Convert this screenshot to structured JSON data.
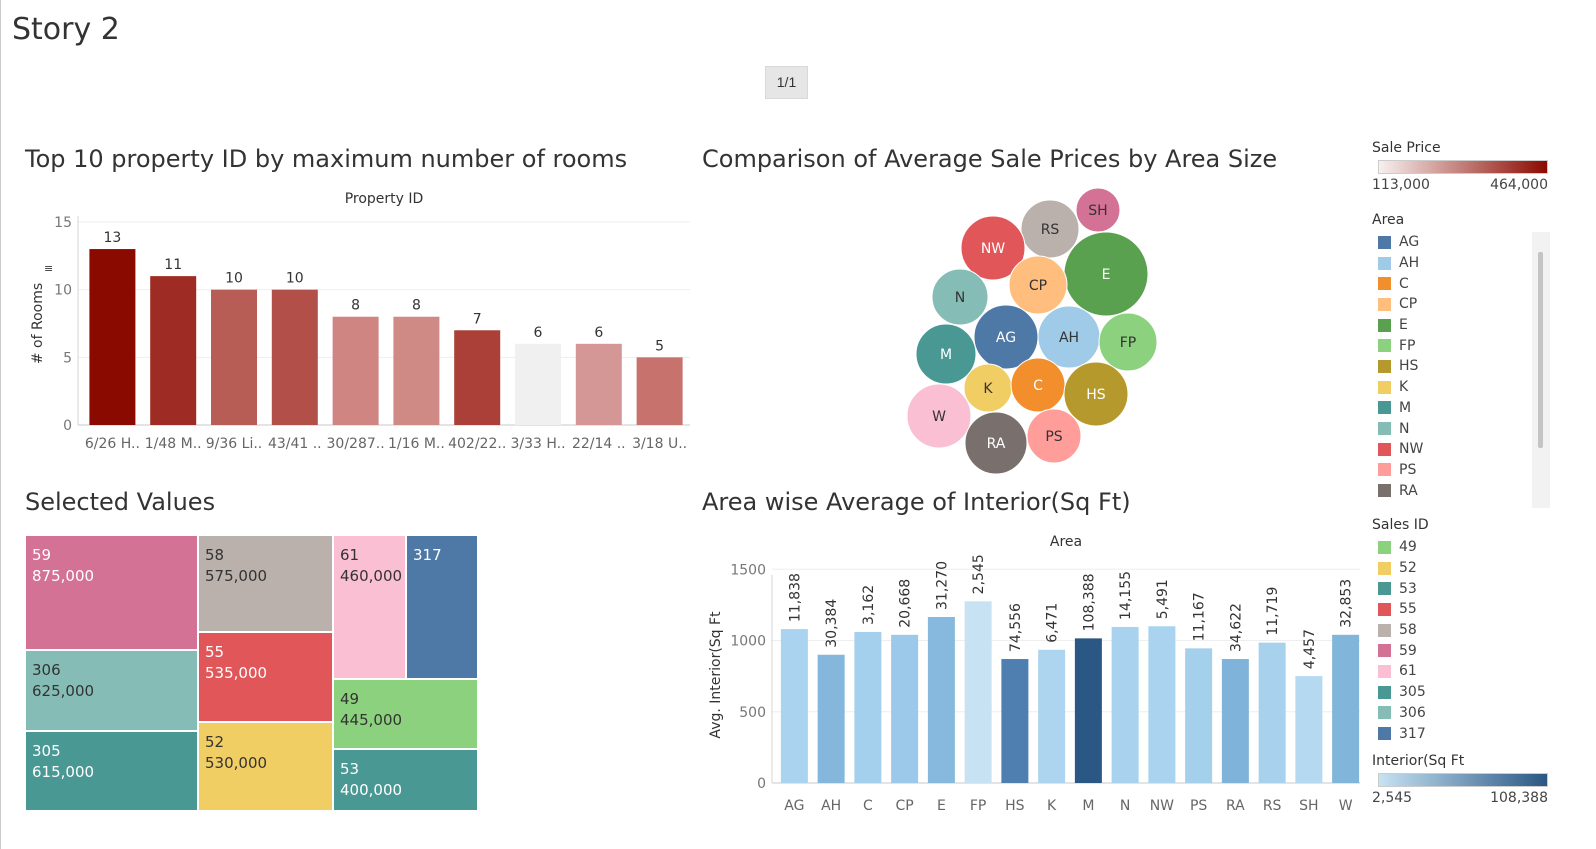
{
  "story_title": "Story 2",
  "page_indicator": "1/1",
  "chart1": {
    "title": "Top 10 property ID by maximum number of rooms",
    "axis_top_title": "Property ID",
    "ylabel": "# of Rooms",
    "ylabel_icon": "sort-icon"
  },
  "chart2": {
    "title": "Comparison of Average Sale Prices by Area Size"
  },
  "chart3": {
    "title": "Selected Values"
  },
  "chart4": {
    "title": "Area wise Average of Interior(Sq Ft)",
    "axis_top_title": "Area",
    "ylabel": "Avg. Interior(Sq Ft"
  },
  "legend": {
    "sale_price": {
      "title": "Sale Price",
      "min": "113,000",
      "max": "464,000",
      "color_min": "#f7f0ef",
      "color_max": "#8b0a00"
    },
    "area": {
      "title": "Area",
      "items": [
        {
          "label": "AG",
          "color": "#4e79a7"
        },
        {
          "label": "AH",
          "color": "#a0cbe8"
        },
        {
          "label": "C",
          "color": "#f28e2b"
        },
        {
          "label": "CP",
          "color": "#ffbe7d"
        },
        {
          "label": "E",
          "color": "#59a14f"
        },
        {
          "label": "FP",
          "color": "#8cd17d"
        },
        {
          "label": "HS",
          "color": "#b6992d"
        },
        {
          "label": "K",
          "color": "#f1ce63"
        },
        {
          "label": "M",
          "color": "#499894"
        },
        {
          "label": "N",
          "color": "#86bcb6"
        },
        {
          "label": "NW",
          "color": "#e15759"
        },
        {
          "label": "PS",
          "color": "#ff9d9a"
        },
        {
          "label": "RA",
          "color": "#79706e"
        }
      ]
    },
    "sales_id": {
      "title": "Sales ID",
      "items": [
        {
          "label": "49",
          "color": "#8cd17d"
        },
        {
          "label": "52",
          "color": "#f1ce63"
        },
        {
          "label": "53",
          "color": "#499894"
        },
        {
          "label": "55",
          "color": "#e15759"
        },
        {
          "label": "58",
          "color": "#bab0ac"
        },
        {
          "label": "59",
          "color": "#d37295"
        },
        {
          "label": "61",
          "color": "#fabfd2"
        },
        {
          "label": "305",
          "color": "#499894"
        },
        {
          "label": "306",
          "color": "#86bcb6"
        },
        {
          "label": "317",
          "color": "#4e79a7"
        }
      ]
    },
    "interior": {
      "title": "Interior(Sq Ft",
      "min": "2,545",
      "max": "108,388",
      "color_min": "#c6e2f3",
      "color_max": "#2a5783"
    }
  },
  "chart_data": [
    {
      "type": "bar",
      "title": "Top 10 property ID by maximum number of rooms",
      "xlabel": "Property ID",
      "ylabel": "# of Rooms",
      "categories": [
        "6/26 H..",
        "1/48 M..",
        "9/36 Li..",
        "43/41 ..",
        "30/287..",
        "1/16 M..",
        "402/22..",
        "3/33 H..",
        "22/14 ..",
        "3/18 U.."
      ],
      "values": [
        13,
        11,
        10,
        10,
        8,
        8,
        7,
        6,
        6,
        5
      ],
      "colors": [
        "#8b0a00",
        "#9e2c24",
        "#b75d56",
        "#b24f49",
        "#cf8581",
        "#d08a86",
        "#aa4037",
        "#f0f0f0",
        "#d49795",
        "#c7726c"
      ],
      "yticks": [
        0,
        5,
        10,
        15
      ],
      "ylim": [
        0,
        15
      ]
    },
    {
      "type": "bubble",
      "title": "Comparison of Average Sale Prices by Area Size",
      "items": [
        {
          "label": "SH",
          "color": "#d37295",
          "size": 22
        },
        {
          "label": "RS",
          "color": "#bab0ac",
          "size": 29
        },
        {
          "label": "NW",
          "color": "#e15759",
          "size": 32
        },
        {
          "label": "E",
          "color": "#59a14f",
          "size": 42
        },
        {
          "label": "CP",
          "color": "#ffbe7d",
          "size": 29
        },
        {
          "label": "N",
          "color": "#86bcb6",
          "size": 28
        },
        {
          "label": "AG",
          "color": "#4e79a7",
          "size": 32
        },
        {
          "label": "AH",
          "color": "#a0cbe8",
          "size": 31
        },
        {
          "label": "FP",
          "color": "#8cd17d",
          "size": 29
        },
        {
          "label": "M",
          "color": "#499894",
          "size": 30
        },
        {
          "label": "K",
          "color": "#f1ce63",
          "size": 24
        },
        {
          "label": "C",
          "color": "#f28e2b",
          "size": 27
        },
        {
          "label": "HS",
          "color": "#b6992d",
          "size": 32
        },
        {
          "label": "W",
          "color": "#fabfd2",
          "size": 32
        },
        {
          "label": "RA",
          "color": "#79706e",
          "size": 31
        },
        {
          "label": "PS",
          "color": "#ff9d9a",
          "size": 27
        }
      ]
    },
    {
      "type": "treemap",
      "title": "Selected Values",
      "items": [
        {
          "id": "59",
          "value": "875,000",
          "color": "#d37295",
          "text": "#ffffff"
        },
        {
          "id": "58",
          "value": "575,000",
          "color": "#bab0ac",
          "text": "#333333"
        },
        {
          "id": "61",
          "value": "460,000",
          "color": "#fabfd2",
          "text": "#333333"
        },
        {
          "id": "317",
          "value": "",
          "color": "#4e79a7",
          "text": "#ffffff"
        },
        {
          "id": "306",
          "value": "625,000",
          "color": "#86bcb6",
          "text": "#333333"
        },
        {
          "id": "55",
          "value": "535,000",
          "color": "#e15759",
          "text": "#ffffff"
        },
        {
          "id": "49",
          "value": "445,000",
          "color": "#8cd17d",
          "text": "#333333"
        },
        {
          "id": "305",
          "value": "615,000",
          "color": "#499894",
          "text": "#ffffff"
        },
        {
          "id": "52",
          "value": "530,000",
          "color": "#f1ce63",
          "text": "#333333"
        },
        {
          "id": "53",
          "value": "400,000",
          "color": "#499894",
          "text": "#ffffff"
        }
      ]
    },
    {
      "type": "bar",
      "title": "Area wise Average of Interior(Sq Ft)",
      "xlabel": "Area",
      "ylabel": "Avg. Interior(Sq Ft",
      "categories": [
        "AG",
        "AH",
        "C",
        "CP",
        "E",
        "FP",
        "HS",
        "K",
        "M",
        "N",
        "NW",
        "PS",
        "RA",
        "RS",
        "SH",
        "W"
      ],
      "values": [
        1080,
        900,
        1060,
        1040,
        1165,
        1275,
        870,
        935,
        1015,
        1095,
        1100,
        945,
        870,
        985,
        750,
        1040
      ],
      "labels": [
        "11,838",
        "30,384",
        "3,162",
        "20,668",
        "31,270",
        "2,545",
        "74,556",
        "6,471",
        "108,388",
        "14,155",
        "5,491",
        "11,167",
        "34,622",
        "11,719",
        "4,457",
        "32,853"
      ],
      "colors": [
        "#a9d3ee",
        "#85b7dc",
        "#a5d0ed",
        "#9cc9e9",
        "#86b9dd",
        "#c6e2f3",
        "#4f7fb0",
        "#aed5ef",
        "#2a5783",
        "#a8d2ee",
        "#a9d3ee",
        "#a5d0ec",
        "#80b3da",
        "#a7d1ed",
        "#b4d9f0",
        "#81b5da"
      ],
      "yticks": [
        0,
        500,
        1000,
        1500
      ],
      "ylim": [
        0,
        1600
      ]
    }
  ]
}
